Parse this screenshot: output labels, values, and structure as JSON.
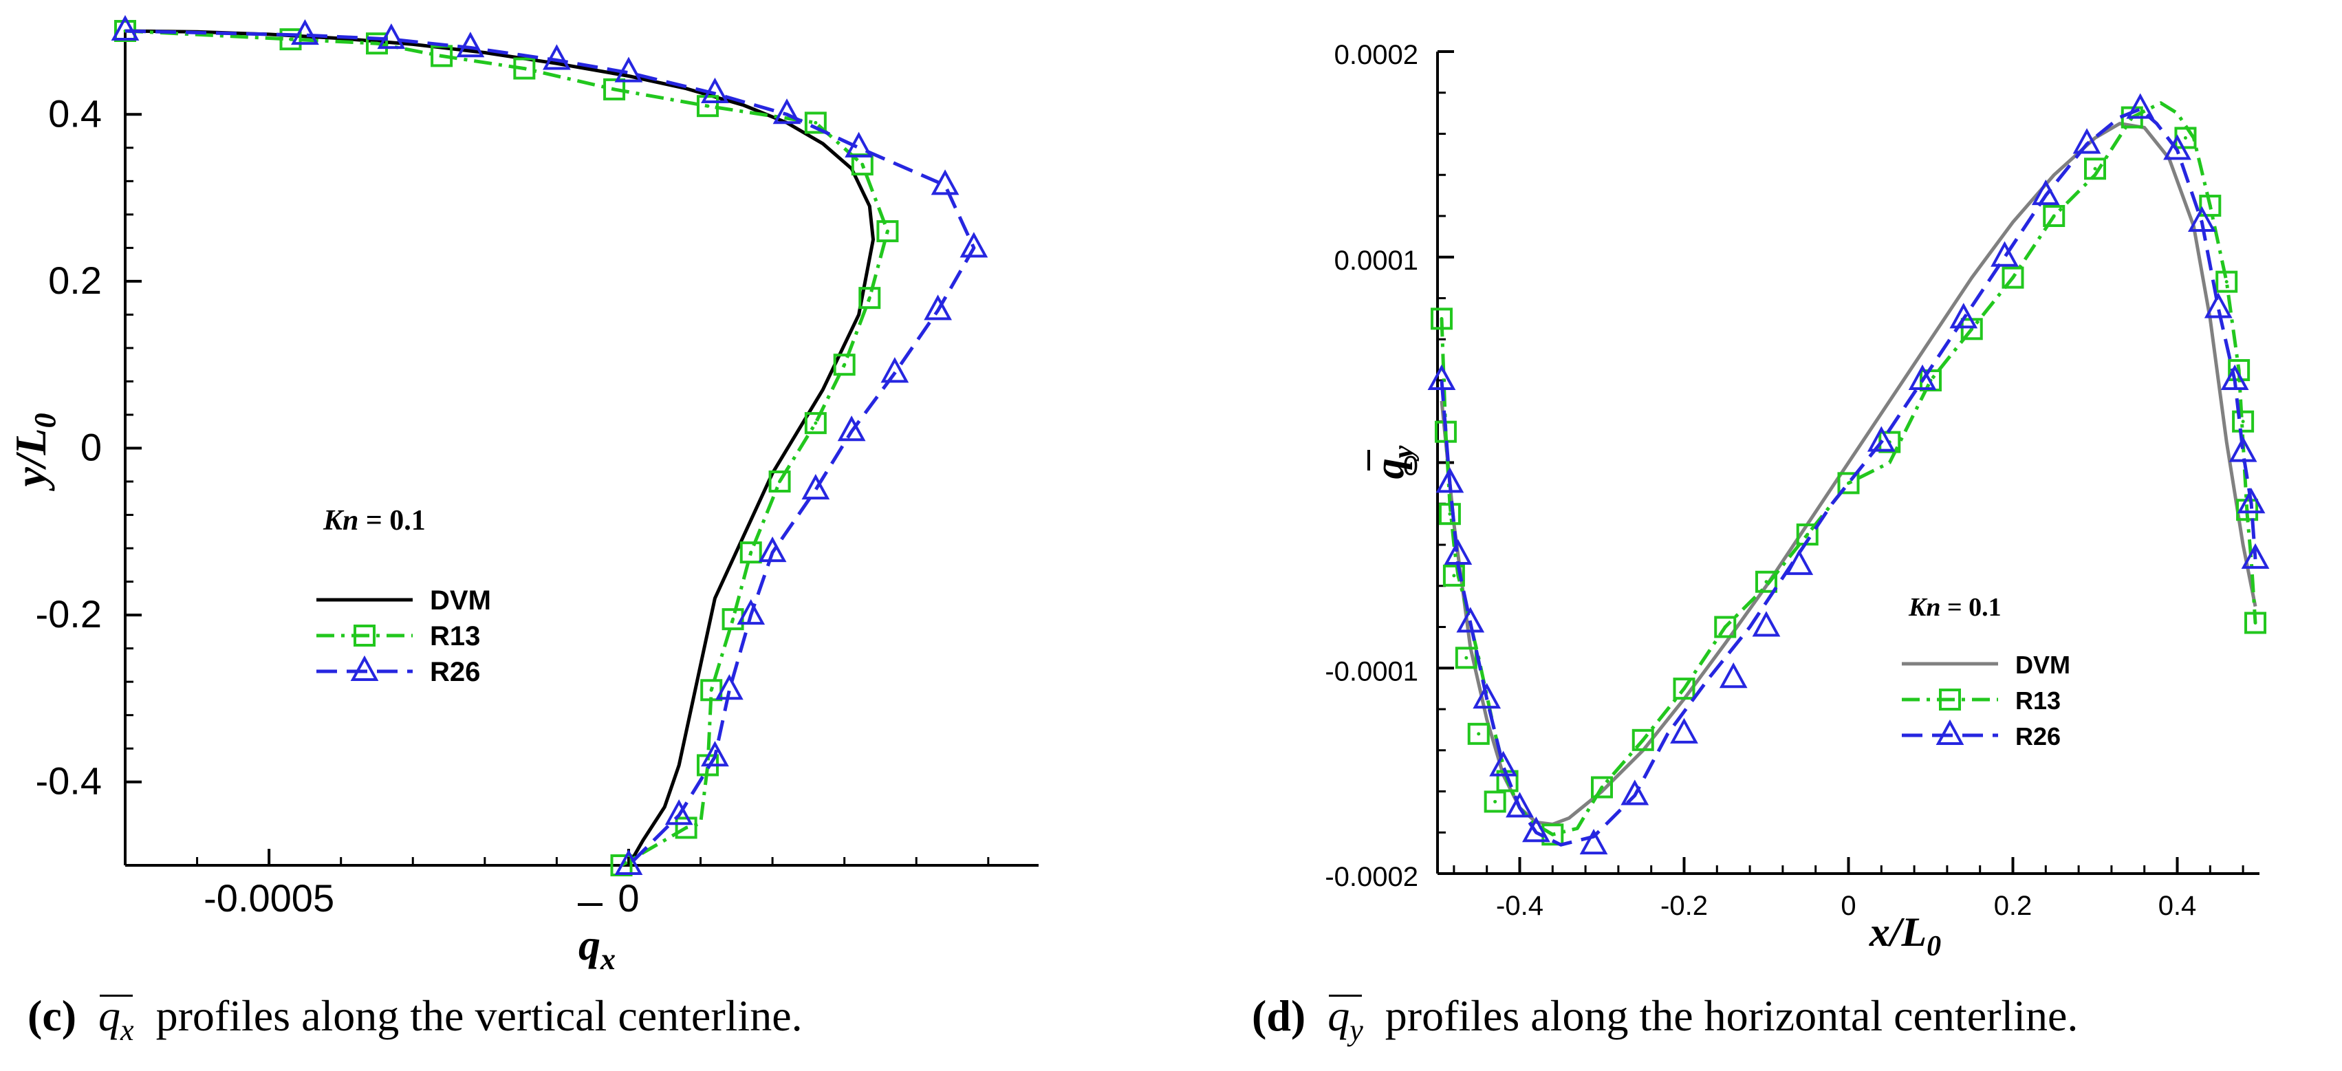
{
  "chart_data": [
    {
      "type": "line",
      "panel": "c",
      "ylabel": "y/L",
      "ylabel_sub": "0",
      "xlabel": "q",
      "xlabel_sub": "x",
      "xlim": [
        -0.0007,
        0.00057
      ],
      "ylim": [
        -0.5,
        0.5
      ],
      "xticks": [
        -0.0005,
        0
      ],
      "xtick_labels": [
        "-0.0005",
        "0"
      ],
      "yticks": [
        0.4,
        0.2,
        0,
        -0.2,
        -0.4
      ],
      "ytick_labels": [
        "0.4",
        "0.2",
        "0",
        "-0.2",
        "-0.4"
      ],
      "annotation": {
        "label": "Kn",
        "value": " = 0.1"
      },
      "legend_position": "center-left",
      "series": [
        {
          "name": "DVM",
          "color": "#000000",
          "style": "solid",
          "marker": "none",
          "x": [
            -0.0007,
            -0.0006,
            -0.0005,
            -0.0004,
            -0.0003,
            -0.0002,
            -0.0001,
            0.0,
            8e-05,
            0.00016,
            0.00022,
            0.00027,
            0.00031,
            0.000335,
            0.00034,
            0.00032,
            0.00027,
            0.0002,
            0.00012,
            9e-05,
            7e-05,
            5e-05,
            2e-05,
            0.0
          ],
          "y": [
            0.5,
            0.499,
            0.496,
            0.491,
            0.484,
            0.474,
            0.461,
            0.446,
            0.431,
            0.411,
            0.39,
            0.365,
            0.335,
            0.29,
            0.25,
            0.16,
            0.07,
            -0.03,
            -0.18,
            -0.3,
            -0.38,
            -0.43,
            -0.47,
            -0.5
          ]
        },
        {
          "name": "R13",
          "color": "#22c71e",
          "style": "dashdot",
          "marker": "square",
          "x": [
            -0.0007,
            -0.00047,
            -0.00035,
            -0.00026,
            -0.000145,
            -2e-05,
            0.00011,
            0.00026,
            0.000325,
            0.00036,
            0.000335,
            0.0003,
            0.00026,
            0.00021,
            0.00017,
            0.000145,
            0.000115,
            0.00011,
            0.0001,
            8e-05,
            -1e-05
          ],
          "y": [
            0.5,
            0.49,
            0.485,
            0.47,
            0.455,
            0.43,
            0.41,
            0.39,
            0.34,
            0.26,
            0.18,
            0.1,
            0.03,
            -0.04,
            -0.125,
            -0.205,
            -0.29,
            -0.38,
            -0.45,
            -0.455,
            -0.5
          ],
          "markers_x": [
            -0.0007,
            -0.00047,
            -0.00035,
            -0.00026,
            -0.000145,
            -2e-05,
            0.00011,
            0.00026,
            0.000325,
            0.00036,
            0.000335,
            0.0003,
            0.00026,
            0.00021,
            0.00017,
            0.000145,
            0.000115,
            0.00011,
            8e-05,
            -1e-05
          ],
          "markers_y": [
            0.5,
            0.49,
            0.485,
            0.47,
            0.455,
            0.43,
            0.41,
            0.39,
            0.34,
            0.26,
            0.18,
            0.1,
            0.03,
            -0.04,
            -0.125,
            -0.205,
            -0.29,
            -0.38,
            -0.455,
            -0.5
          ]
        },
        {
          "name": "R26",
          "color": "#2626e0",
          "style": "dashed",
          "marker": "triangle",
          "x": [
            -0.0007,
            -0.00045,
            -0.00033,
            -0.00022,
            -0.0001,
            0.0,
            0.00012,
            0.00022,
            0.00032,
            0.00044,
            0.00048,
            0.00043,
            0.00037,
            0.00031,
            0.00026,
            0.0002,
            0.00017,
            0.00014,
            0.00012,
            7e-05,
            0.0
          ],
          "y": [
            0.5,
            0.495,
            0.49,
            0.48,
            0.465,
            0.45,
            0.425,
            0.4,
            0.36,
            0.315,
            0.24,
            0.165,
            0.09,
            0.02,
            -0.05,
            -0.125,
            -0.2,
            -0.29,
            -0.37,
            -0.44,
            -0.5
          ],
          "markers_x": [
            -0.0007,
            -0.00045,
            -0.00033,
            -0.00022,
            -0.0001,
            0.0,
            0.00012,
            0.00022,
            0.00032,
            0.00044,
            0.00048,
            0.00043,
            0.00037,
            0.00031,
            0.00026,
            0.0002,
            0.00017,
            0.00014,
            0.00012,
            7e-05,
            0.0
          ],
          "markers_y": [
            0.5,
            0.495,
            0.49,
            0.48,
            0.465,
            0.45,
            0.425,
            0.4,
            0.36,
            0.315,
            0.24,
            0.165,
            0.09,
            0.02,
            -0.05,
            -0.125,
            -0.2,
            -0.29,
            -0.37,
            -0.44,
            -0.5
          ]
        }
      ]
    },
    {
      "type": "line",
      "panel": "d",
      "ylabel": "q",
      "ylabel_sub": "y",
      "xlabel": "x/L",
      "xlabel_sub": "0",
      "xlim": [
        -0.5,
        0.5
      ],
      "ylim": [
        -0.0002,
        0.0002
      ],
      "xticks": [
        -0.4,
        -0.2,
        0,
        0.2,
        0.4
      ],
      "xtick_labels": [
        "-0.4",
        "-0.2",
        "0",
        "0.2",
        "0.4"
      ],
      "yticks": [
        0.0002,
        0.0001,
        0,
        -0.0001,
        -0.0002
      ],
      "ytick_labels": [
        "0.0002",
        "0.0001",
        "0",
        "-0.0001",
        "-0.0002"
      ],
      "annotation": {
        "label": "Kn",
        "value": " = 0.1"
      },
      "legend_position": "lower-right",
      "series": [
        {
          "name": "DVM",
          "color": "#808080",
          "style": "solid",
          "marker": "none",
          "x": [
            -0.495,
            -0.48,
            -0.46,
            -0.44,
            -0.42,
            -0.4,
            -0.38,
            -0.36,
            -0.34,
            -0.3,
            -0.25,
            -0.2,
            -0.15,
            -0.1,
            -0.05,
            0.0,
            0.05,
            0.1,
            0.15,
            0.2,
            0.25,
            0.3,
            0.33,
            0.36,
            0.39,
            0.42,
            0.44,
            0.46,
            0.48,
            0.495
          ],
          "y": [
            3e-05,
            -3e-05,
            -9e-05,
            -0.000125,
            -0.000152,
            -0.000168,
            -0.000175,
            -0.000176,
            -0.000173,
            -0.00016,
            -0.00014,
            -0.000115,
            -8.8e-05,
            -6e-05,
            -3e-05,
            0.0,
            3e-05,
            6e-05,
            9e-05,
            0.000117,
            0.00014,
            0.000158,
            0.000165,
            0.000163,
            0.000148,
            0.000115,
            7e-05,
            1e-05,
            -4e-05,
            -7e-05
          ]
        },
        {
          "name": "R13",
          "color": "#22c71e",
          "style": "dashdot",
          "marker": "square",
          "x": [
            -0.495,
            -0.49,
            -0.485,
            -0.48,
            -0.475,
            -0.465,
            -0.45,
            -0.43,
            -0.415,
            -0.4,
            -0.385,
            -0.36,
            -0.33,
            -0.3,
            -0.25,
            -0.2,
            -0.15,
            -0.1,
            -0.05,
            0.0,
            0.05,
            0.1,
            0.15,
            0.2,
            0.25,
            0.3,
            0.345,
            0.38,
            0.4,
            0.42,
            0.44,
            0.46,
            0.475,
            0.48,
            0.485,
            0.49,
            0.495
          ],
          "y": [
            7e-05,
            1.5e-05,
            -2e-05,
            -4e-05,
            -5.5e-05,
            -7e-05,
            -9.5e-05,
            -0.000132,
            -0.000155,
            -0.000168,
            -0.000175,
            -0.000181,
            -0.000178,
            -0.000158,
            -0.000135,
            -0.00011,
            -8e-05,
            -6e-05,
            -3.5e-05,
            -1e-05,
            0.0,
            4e-05,
            6.5e-05,
            9e-05,
            0.00012,
            0.00014,
            0.000168,
            0.000175,
            0.00017,
            0.000158,
            0.000125,
            8.8e-05,
            4.5e-05,
            1e-05,
            -2.5e-05,
            -4.75e-05,
            -7.8e-05
          ],
          "markers_x": [
            -0.495,
            -0.49,
            -0.485,
            -0.48,
            -0.465,
            -0.45,
            -0.43,
            -0.415,
            -0.36,
            -0.3,
            -0.25,
            -0.2,
            -0.15,
            -0.1,
            -0.05,
            0.0,
            0.05,
            0.1,
            0.15,
            0.2,
            0.25,
            0.3,
            0.345,
            0.41,
            0.44,
            0.46,
            0.475,
            0.48,
            0.485,
            0.495
          ],
          "markers_y": [
            7e-05,
            1.5e-05,
            -2.5e-05,
            -5.5e-05,
            -9.5e-05,
            -0.000132,
            -0.000165,
            -0.000155,
            -0.000181,
            -0.000158,
            -0.000135,
            -0.00011,
            -8e-05,
            -5.8e-05,
            -3.5e-05,
            -1e-05,
            1e-05,
            4e-05,
            6.5e-05,
            9e-05,
            0.00012,
            0.000143,
            0.000168,
            0.000158,
            0.000125,
            8.8e-05,
            4.5e-05,
            2e-05,
            -2.3e-05,
            -7.8e-05
          ]
        },
        {
          "name": "R26",
          "color": "#2626e0",
          "style": "dashed",
          "marker": "triangle",
          "x": [
            -0.495,
            -0.485,
            -0.475,
            -0.46,
            -0.44,
            -0.42,
            -0.4,
            -0.38,
            -0.35,
            -0.31,
            -0.26,
            -0.22,
            -0.17,
            -0.12,
            -0.07,
            -0.02,
            0.04,
            0.09,
            0.14,
            0.19,
            0.24,
            0.29,
            0.33,
            0.355,
            0.375,
            0.4,
            0.43,
            0.45,
            0.47,
            0.48,
            0.49,
            0.495
          ],
          "y": [
            4e-05,
            -1e-05,
            -5e-05,
            -7.8e-05,
            -0.000115,
            -0.000148,
            -0.000168,
            -0.00018,
            -0.000186,
            -0.000182,
            -0.000162,
            -0.000132,
            -0.000105,
            -8e-05,
            -5e-05,
            -2e-05,
            1e-05,
            4e-05,
            7e-05,
            0.0001,
            0.00013,
            0.000155,
            0.000168,
            0.000172,
            0.000165,
            0.000152,
            0.000117,
            7.5e-05,
            4e-05,
            5e-06,
            -2e-05,
            -4.7e-05
          ],
          "markers_x": [
            -0.495,
            -0.485,
            -0.475,
            -0.46,
            -0.44,
            -0.42,
            -0.4,
            -0.38,
            -0.31,
            -0.26,
            -0.2,
            -0.14,
            -0.1,
            -0.06,
            0.04,
            0.09,
            0.14,
            0.19,
            0.24,
            0.29,
            0.355,
            0.4,
            0.43,
            0.45,
            0.47,
            0.48,
            0.49,
            0.495
          ],
          "markers_y": [
            4e-05,
            -1e-05,
            -4.5e-05,
            -7.8e-05,
            -0.000115,
            -0.000148,
            -0.000168,
            -0.00018,
            -0.000186,
            -0.000162,
            -0.000132,
            -0.000105,
            -8e-05,
            -5e-05,
            1e-05,
            4e-05,
            7e-05,
            0.0001,
            0.00013,
            0.000155,
            0.000172,
            0.000152,
            0.000117,
            7.5e-05,
            4e-05,
            5e-06,
            -2e-05,
            -4.7e-05
          ]
        }
      ]
    }
  ],
  "captions": {
    "left": {
      "tag": "(c)",
      "symbol": "q",
      "sub": "x",
      "text": "profiles along the vertical centerline."
    },
    "right": {
      "tag": "(d)",
      "symbol": "q",
      "sub": "y",
      "text": "profiles along the horizontal centerline."
    }
  }
}
